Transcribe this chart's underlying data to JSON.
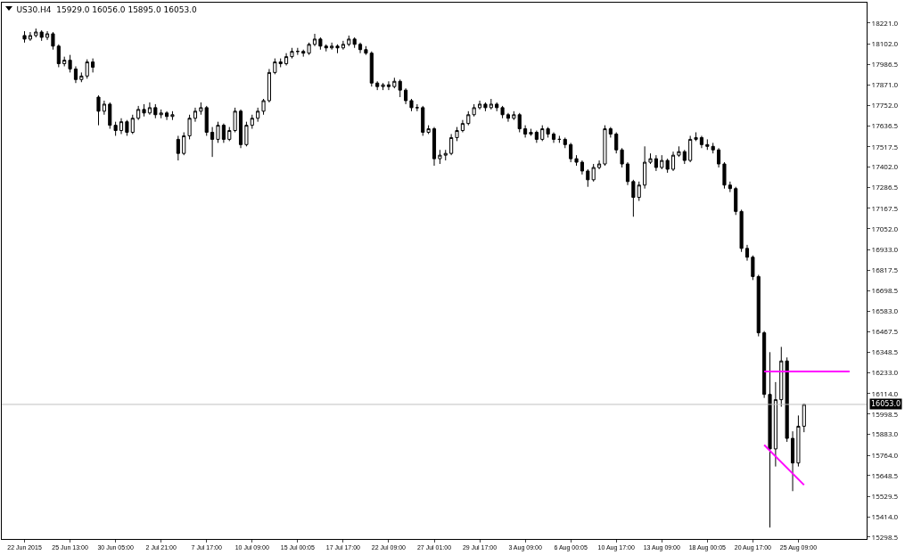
{
  "chart_data": {
    "type": "candlestick",
    "title": "US30.H4  15929.0 16056.0 15895.0 16053.0",
    "categories": [
      "22 Jun 2015",
      null,
      null,
      null,
      null,
      null,
      null,
      null,
      "25 Jun 13:00",
      null,
      null,
      null,
      null,
      null,
      null,
      null,
      "30 Jun 05:00",
      null,
      null,
      null,
      null,
      null,
      null,
      null,
      "2 Jul 21:00",
      null,
      null,
      null,
      null,
      null,
      null,
      null,
      "7 Jul 17:00",
      null,
      null,
      null,
      null,
      null,
      null,
      null,
      "10 Jul 09:00",
      null,
      null,
      null,
      null,
      null,
      null,
      null,
      "15 Jul 00:05",
      null,
      null,
      null,
      null,
      null,
      null,
      null,
      "17 Jul 17:00",
      null,
      null,
      null,
      null,
      null,
      null,
      null,
      "22 Jul 09:00",
      null,
      null,
      null,
      null,
      null,
      null,
      null,
      "27 Jul 01:00",
      null,
      null,
      null,
      null,
      null,
      null,
      null,
      "29 Jul 17:00",
      null,
      null,
      null,
      null,
      null,
      null,
      null,
      "3 Aug 09:00",
      null,
      null,
      null,
      null,
      null,
      null,
      null,
      "6 Aug 00:05",
      null,
      null,
      null,
      null,
      null,
      null,
      null,
      "10 Aug 17:00",
      null,
      null,
      null,
      null,
      null,
      null,
      null,
      "13 Aug 09:00",
      null,
      null,
      null,
      null,
      null,
      null,
      null,
      "18 Aug 00:05",
      null,
      null,
      null,
      null,
      null,
      null,
      null,
      "20 Aug 17:00",
      null,
      null,
      null,
      null,
      null,
      null,
      null,
      "25 Aug 09:00",
      null,
      null,
      null,
      null,
      null,
      null,
      null,
      null,
      null
    ],
    "ohlc": [
      [
        18150,
        18175,
        18110,
        18130
      ],
      [
        18130,
        18170,
        18120,
        18150
      ],
      [
        18150,
        18190,
        18140,
        18170
      ],
      [
        18170,
        18180,
        18120,
        18140
      ],
      [
        18140,
        18175,
        18125,
        18160
      ],
      [
        18160,
        18170,
        18070,
        18090
      ],
      [
        18090,
        18100,
        17970,
        17990
      ],
      [
        17990,
        18030,
        17975,
        18010
      ],
      [
        18010,
        18040,
        17940,
        17960
      ],
      [
        17960,
        17975,
        17880,
        17900
      ],
      [
        17900,
        17940,
        17885,
        17920
      ],
      [
        17920,
        18015,
        17905,
        18000
      ],
      [
        18000,
        18020,
        17940,
        17970
      ],
      [
        17800,
        17810,
        17640,
        17720
      ],
      [
        17720,
        17780,
        17700,
        17760
      ],
      [
        17760,
        17770,
        17620,
        17640
      ],
      [
        17640,
        17660,
        17580,
        17610
      ],
      [
        17610,
        17680,
        17590,
        17660
      ],
      [
        17660,
        17670,
        17580,
        17600
      ],
      [
        17600,
        17700,
        17590,
        17680
      ],
      [
        17680,
        17750,
        17670,
        17730
      ],
      [
        17730,
        17760,
        17690,
        17710
      ],
      [
        17710,
        17770,
        17700,
        17740
      ],
      [
        17740,
        17760,
        17680,
        17700
      ],
      [
        17700,
        17730,
        17680,
        17710
      ],
      [
        17710,
        17720,
        17670,
        17690
      ],
      [
        17690,
        17720,
        17670,
        17700
      ],
      [
        17560,
        17580,
        17440,
        17480
      ],
      [
        17480,
        17600,
        17470,
        17580
      ],
      [
        17580,
        17700,
        17560,
        17680
      ],
      [
        17680,
        17740,
        17660,
        17720
      ],
      [
        17720,
        17770,
        17700,
        17740
      ],
      [
        17740,
        17750,
        17580,
        17600
      ],
      [
        17600,
        17630,
        17460,
        17560
      ],
      [
        17560,
        17660,
        17540,
        17640
      ],
      [
        17640,
        17650,
        17540,
        17560
      ],
      [
        17560,
        17630,
        17550,
        17610
      ],
      [
        17610,
        17740,
        17600,
        17720
      ],
      [
        17720,
        17730,
        17510,
        17530
      ],
      [
        17530,
        17660,
        17520,
        17640
      ],
      [
        17640,
        17700,
        17620,
        17680
      ],
      [
        17680,
        17740,
        17660,
        17720
      ],
      [
        17720,
        17790,
        17700,
        17780
      ],
      [
        17780,
        17960,
        17770,
        17940
      ],
      [
        17940,
        18020,
        17930,
        18000
      ],
      [
        18000,
        18020,
        17970,
        17990
      ],
      [
        17990,
        18050,
        17980,
        18030
      ],
      [
        18030,
        18080,
        18020,
        18060
      ],
      [
        18060,
        18080,
        18040,
        18060
      ],
      [
        18060,
        18070,
        18030,
        18050
      ],
      [
        18050,
        18110,
        18040,
        18100
      ],
      [
        18100,
        18160,
        18090,
        18130
      ],
      [
        18130,
        18140,
        18070,
        18090
      ],
      [
        18090,
        18100,
        18060,
        18080
      ],
      [
        18080,
        18110,
        18070,
        18090
      ],
      [
        18090,
        18100,
        18050,
        18080
      ],
      [
        18080,
        18120,
        18070,
        18100
      ],
      [
        18100,
        18150,
        18090,
        18130
      ],
      [
        18130,
        18140,
        18080,
        18100
      ],
      [
        18100,
        18110,
        18050,
        18070
      ],
      [
        18070,
        18090,
        18040,
        18050
      ],
      [
        18050,
        18060,
        17860,
        17880
      ],
      [
        17880,
        17890,
        17840,
        17860
      ],
      [
        17860,
        17880,
        17840,
        17870
      ],
      [
        17870,
        17890,
        17840,
        17860
      ],
      [
        17860,
        17910,
        17850,
        17890
      ],
      [
        17890,
        17900,
        17800,
        17840
      ],
      [
        17840,
        17850,
        17760,
        17780
      ],
      [
        17780,
        17790,
        17720,
        17740
      ],
      [
        17740,
        17760,
        17720,
        17740
      ],
      [
        17740,
        17750,
        17580,
        17600
      ],
      [
        17600,
        17640,
        17590,
        17620
      ],
      [
        17620,
        17630,
        17410,
        17450
      ],
      [
        17450,
        17500,
        17420,
        17470
      ],
      [
        17470,
        17500,
        17440,
        17480
      ],
      [
        17480,
        17590,
        17470,
        17570
      ],
      [
        17570,
        17630,
        17550,
        17610
      ],
      [
        17610,
        17670,
        17600,
        17650
      ],
      [
        17650,
        17720,
        17640,
        17700
      ],
      [
        17700,
        17760,
        17690,
        17740
      ],
      [
        17740,
        17780,
        17730,
        17760
      ],
      [
        17760,
        17770,
        17720,
        17740
      ],
      [
        17740,
        17790,
        17730,
        17760
      ],
      [
        17760,
        17770,
        17720,
        17740
      ],
      [
        17740,
        17750,
        17680,
        17700
      ],
      [
        17700,
        17710,
        17660,
        17680
      ],
      [
        17680,
        17720,
        17670,
        17700
      ],
      [
        17700,
        17710,
        17600,
        17620
      ],
      [
        17620,
        17640,
        17570,
        17590
      ],
      [
        17590,
        17620,
        17580,
        17600
      ],
      [
        17600,
        17610,
        17540,
        17560
      ],
      [
        17560,
        17640,
        17550,
        17620
      ],
      [
        17620,
        17630,
        17570,
        17590
      ],
      [
        17590,
        17600,
        17540,
        17560
      ],
      [
        17560,
        17580,
        17540,
        17560
      ],
      [
        17560,
        17570,
        17510,
        17530
      ],
      [
        17530,
        17540,
        17430,
        17450
      ],
      [
        17450,
        17470,
        17410,
        17430
      ],
      [
        17430,
        17440,
        17360,
        17380
      ],
      [
        17380,
        17390,
        17290,
        17330
      ],
      [
        17330,
        17420,
        17320,
        17400
      ],
      [
        17400,
        17440,
        17390,
        17420
      ],
      [
        17420,
        17640,
        17410,
        17620
      ],
      [
        17620,
        17630,
        17570,
        17590
      ],
      [
        17590,
        17600,
        17480,
        17500
      ],
      [
        17500,
        17510,
        17400,
        17420
      ],
      [
        17420,
        17430,
        17300,
        17320
      ],
      [
        17320,
        17330,
        17120,
        17230
      ],
      [
        17230,
        17320,
        17210,
        17300
      ],
      [
        17300,
        17520,
        17280,
        17430
      ],
      [
        17430,
        17480,
        17420,
        17450
      ],
      [
        17450,
        17470,
        17380,
        17400
      ],
      [
        17400,
        17470,
        17390,
        17440
      ],
      [
        17440,
        17450,
        17370,
        17390
      ],
      [
        17390,
        17490,
        17380,
        17470
      ],
      [
        17470,
        17520,
        17460,
        17490
      ],
      [
        17490,
        17500,
        17420,
        17440
      ],
      [
        17440,
        17580,
        17430,
        17560
      ],
      [
        17560,
        17600,
        17550,
        17570
      ],
      [
        17570,
        17580,
        17510,
        17530
      ],
      [
        17530,
        17560,
        17500,
        17520
      ],
      [
        17520,
        17540,
        17480,
        17500
      ],
      [
        17500,
        17510,
        17400,
        17420
      ],
      [
        17420,
        17430,
        17280,
        17300
      ],
      [
        17300,
        17320,
        17260,
        17280
      ],
      [
        17280,
        17290,
        17130,
        17150
      ],
      [
        17150,
        17160,
        16920,
        16940
      ],
      [
        16940,
        16960,
        16870,
        16890
      ],
      [
        16890,
        16900,
        16760,
        16780
      ],
      [
        16780,
        16790,
        16440,
        16460
      ],
      [
        16460,
        16470,
        16090,
        16110
      ],
      [
        16110,
        16350,
        15353,
        15800
      ],
      [
        15800,
        16180,
        15700,
        16080
      ],
      [
        16080,
        16380,
        16040,
        16300
      ],
      [
        16300,
        16320,
        15840,
        15860
      ],
      [
        15860,
        15900,
        15560,
        15720
      ],
      [
        15720,
        15990,
        15700,
        15929
      ],
      [
        15929,
        16056,
        15895,
        16053
      ],
      null,
      null,
      null,
      null,
      null,
      null,
      null,
      null
    ],
    "series": [
      {
        "type": "line",
        "color": "#ff00ff",
        "values": [
          null,
          null,
          null,
          null,
          null,
          null,
          null,
          null,
          null,
          null,
          null,
          null,
          null,
          null,
          null,
          null,
          null,
          null,
          null,
          null,
          null,
          null,
          null,
          null,
          null,
          null,
          null,
          null,
          null,
          null,
          null,
          null,
          null,
          null,
          null,
          null,
          null,
          null,
          null,
          null,
          null,
          null,
          null,
          null,
          null,
          null,
          null,
          null,
          null,
          null,
          null,
          null,
          null,
          null,
          null,
          null,
          null,
          null,
          null,
          null,
          null,
          null,
          null,
          null,
          null,
          null,
          null,
          null,
          null,
          null,
          null,
          null,
          null,
          null,
          null,
          null,
          null,
          null,
          null,
          null,
          null,
          null,
          null,
          null,
          null,
          null,
          null,
          null,
          null,
          null,
          null,
          null,
          null,
          null,
          null,
          null,
          null,
          null,
          null,
          null,
          null,
          null,
          null,
          null,
          null,
          null,
          null,
          null,
          null,
          null,
          null,
          null,
          null,
          null,
          null,
          null,
          null,
          null,
          null,
          null,
          null,
          null,
          null,
          null,
          null,
          null,
          null,
          null,
          null,
          null,
          16240,
          null,
          null,
          null,
          null,
          null,
          null,
          null,
          null,
          null,
          null,
          null,
          null,
          null,
          null,
          16240
        ]
      },
      {
        "type": "line",
        "color": "#ff00ff",
        "values": [
          null,
          null,
          null,
          null,
          null,
          null,
          null,
          null,
          null,
          null,
          null,
          null,
          null,
          null,
          null,
          null,
          null,
          null,
          null,
          null,
          null,
          null,
          null,
          null,
          null,
          null,
          null,
          null,
          null,
          null,
          null,
          null,
          null,
          null,
          null,
          null,
          null,
          null,
          null,
          null,
          null,
          null,
          null,
          null,
          null,
          null,
          null,
          null,
          null,
          null,
          null,
          null,
          null,
          null,
          null,
          null,
          null,
          null,
          null,
          null,
          null,
          null,
          null,
          null,
          null,
          null,
          null,
          null,
          null,
          null,
          null,
          null,
          null,
          null,
          null,
          null,
          null,
          null,
          null,
          null,
          null,
          null,
          null,
          null,
          null,
          null,
          null,
          null,
          null,
          null,
          null,
          null,
          null,
          null,
          null,
          null,
          null,
          null,
          null,
          null,
          null,
          null,
          null,
          null,
          null,
          null,
          null,
          null,
          null,
          null,
          null,
          null,
          null,
          null,
          null,
          null,
          null,
          null,
          null,
          null,
          null,
          null,
          null,
          null,
          null,
          null,
          null,
          null,
          null,
          null,
          15822,
          null,
          null,
          null,
          null,
          null,
          null,
          15595,
          null,
          null,
          null,
          null,
          null,
          null,
          null,
          null
        ]
      }
    ],
    "ref_lines": [
      {
        "axis": "y",
        "value": 16053,
        "label": "16053.0",
        "color": "#c0c0c0"
      }
    ],
    "ylim": [
      15288,
      18337
    ],
    "yticks": [
      {
        "value": 18221,
        "label": "18221.0"
      },
      {
        "value": 18102,
        "label": "18102.0"
      },
      {
        "value": 17986.5,
        "label": "17986.5"
      },
      {
        "value": 17871,
        "label": "17871.0"
      },
      {
        "value": 17752,
        "label": "17752.0"
      },
      {
        "value": 17636.5,
        "label": "17636.5"
      },
      {
        "value": 17517.5,
        "label": "17517.5"
      },
      {
        "value": 17402,
        "label": "17402.0"
      },
      {
        "value": 17286.5,
        "label": "17286.5"
      },
      {
        "value": 17167.5,
        "label": "17167.5"
      },
      {
        "value": 17052,
        "label": "17052.0"
      },
      {
        "value": 16933,
        "label": "16933.0"
      },
      {
        "value": 16817.5,
        "label": "16817.5"
      },
      {
        "value": 16698.5,
        "label": "16698.5"
      },
      {
        "value": 16583,
        "label": "16583.0"
      },
      {
        "value": 16467.5,
        "label": "16467.5"
      },
      {
        "value": 16348.5,
        "label": "16348.5"
      },
      {
        "value": 16233,
        "label": "16233.0"
      },
      {
        "value": 16114,
        "label": "16114.0"
      },
      {
        "value": 15998.5,
        "label": "15998.5"
      },
      {
        "value": 15883,
        "label": "15883.0"
      },
      {
        "value": 15764,
        "label": "15764.0"
      },
      {
        "value": 15648.5,
        "label": "15648.5"
      },
      {
        "value": 15529.5,
        "label": "15529.5"
      },
      {
        "value": 15414,
        "label": "15414.0"
      },
      {
        "value": 15298.5,
        "label": "15298.5"
      }
    ],
    "grid": false
  }
}
